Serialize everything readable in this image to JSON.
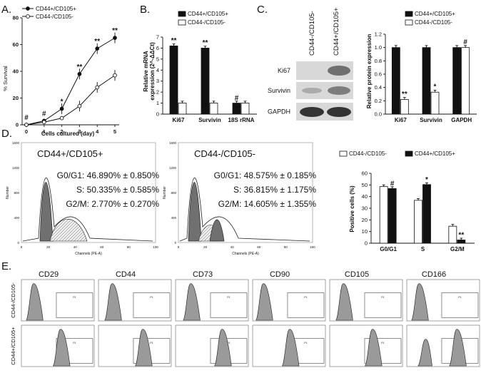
{
  "panels": {
    "A": "A.",
    "B": "B.",
    "C": "C.",
    "D": "D.",
    "E": "E."
  },
  "colors": {
    "filled": "#111111",
    "open": "#ffffff",
    "histogram": "#9a9a9a",
    "blot_bg": "#d8d8d8"
  },
  "A": {
    "chart_data": {
      "type": "line",
      "xlabel": "Cells cultured (day)",
      "ylabel": "% Survival",
      "x": [
        0,
        1,
        2,
        3,
        4,
        5
      ],
      "xlim": [
        0,
        5
      ],
      "ylim": [
        0,
        80
      ],
      "yticks": [
        0,
        20,
        40,
        60,
        80
      ],
      "legend": "top-left",
      "series": [
        {
          "name": "CD44+/CD105+",
          "marker": "filled",
          "values": [
            0,
            3,
            12,
            38,
            57,
            65
          ]
        },
        {
          "name": "CD44-/CD105-",
          "marker": "open",
          "values": [
            0,
            2,
            5,
            14,
            28,
            37
          ]
        }
      ],
      "annotations": [
        {
          "x": 0,
          "label": "#"
        },
        {
          "x": 1,
          "label": "#"
        },
        {
          "x": 2,
          "label": "*"
        },
        {
          "x": 3,
          "label": "**"
        },
        {
          "x": 4,
          "label": "**"
        },
        {
          "x": 5,
          "label": "**"
        }
      ]
    }
  },
  "B": {
    "chart_data": {
      "type": "bar",
      "ylabel_line1": "Relative mRNA",
      "ylabel_line2": "expression (2^-ΔΔCt)",
      "categories": [
        "Ki67",
        "Survivin",
        "18S rRNA"
      ],
      "ylim": [
        0,
        7
      ],
      "yticks": [
        0,
        1,
        2,
        3,
        4,
        5,
        6,
        7
      ],
      "legend": "top",
      "series": [
        {
          "name": "CD44+/CD105+",
          "marker": "filled",
          "values": [
            6.2,
            6.0,
            1.0
          ]
        },
        {
          "name": "CD44-/CD105-",
          "marker": "open",
          "values": [
            1.0,
            1.0,
            1.0
          ]
        }
      ],
      "annotations": [
        "**",
        "**",
        "#"
      ]
    }
  },
  "C": {
    "blot_columns": [
      "CD44-/CD105-",
      "CD44+/CD105+"
    ],
    "blot_rows": [
      "Ki67",
      "Survivin",
      "GAPDH"
    ],
    "chart_data": {
      "type": "bar",
      "ylabel": "Relative protein expression",
      "categories": [
        "Ki67",
        "Survivin",
        "GAPDH"
      ],
      "ylim": [
        0,
        1.2
      ],
      "yticks": [
        "0.0",
        "0.2",
        "0.4",
        "0.6",
        "0.8",
        "1.0",
        "1.2"
      ],
      "legend": "top",
      "series": [
        {
          "name": "CD44+/CD105+",
          "marker": "filled",
          "values": [
            1.0,
            1.0,
            1.0
          ]
        },
        {
          "name": "CD44-/CD105-",
          "marker": "open",
          "values": [
            0.22,
            0.33,
            1.0
          ]
        }
      ],
      "annotations": [
        "**",
        "*",
        "#"
      ]
    }
  },
  "D": {
    "histograms": [
      {
        "title": "CD44+/CD105+",
        "g0g1": "G0/G1: 46.890% ± 0.850%",
        "s": "S: 50.335% ± 0.585%",
        "g2m": "G2/M: 2.770% ± 0.270%",
        "ylabel": "Number",
        "xlabel": "Channels (PE-A)",
        "yticks": [
          "0",
          "400",
          "800",
          "1200",
          "1600"
        ],
        "xticks": [
          "0",
          "20",
          "40",
          "60",
          "80",
          "100"
        ]
      },
      {
        "title": "CD44-/CD105-",
        "g0g1": "G0/G1: 48.575% ± 0.185%",
        "s": "S: 36.815% ± 1.175%",
        "g2m": "G2/M: 14.605% ± 1.355%",
        "ylabel": "Number",
        "xlabel": "Channels (PE-A)",
        "yticks": [
          "0",
          "400",
          "800",
          "1200",
          "1600"
        ],
        "xticks": [
          "0",
          "20",
          "40",
          "60",
          "80",
          "100"
        ]
      }
    ],
    "chart_data": {
      "type": "bar",
      "ylabel": "Positive cells (%)",
      "categories": [
        "G0/G1",
        "S",
        "G2/M"
      ],
      "ylim": [
        0,
        60
      ],
      "yticks": [
        0,
        10,
        20,
        30,
        40,
        50,
        60
      ],
      "legend": "top",
      "series": [
        {
          "name": "CD44-/CD105-",
          "marker": "open",
          "values": [
            48.575,
            36.815,
            14.605
          ]
        },
        {
          "name": "CD44+/CD105+",
          "marker": "filled",
          "values": [
            46.89,
            50.335,
            2.77
          ]
        }
      ],
      "annotations": [
        "#",
        "*",
        "**"
      ]
    }
  },
  "E": {
    "markers": [
      "CD29",
      "CD44",
      "CD73",
      "CD90",
      "CD105",
      "CD166"
    ],
    "rows": [
      "CD44-/CD105-",
      "CD44+/CD105+"
    ],
    "gate": "P1"
  }
}
